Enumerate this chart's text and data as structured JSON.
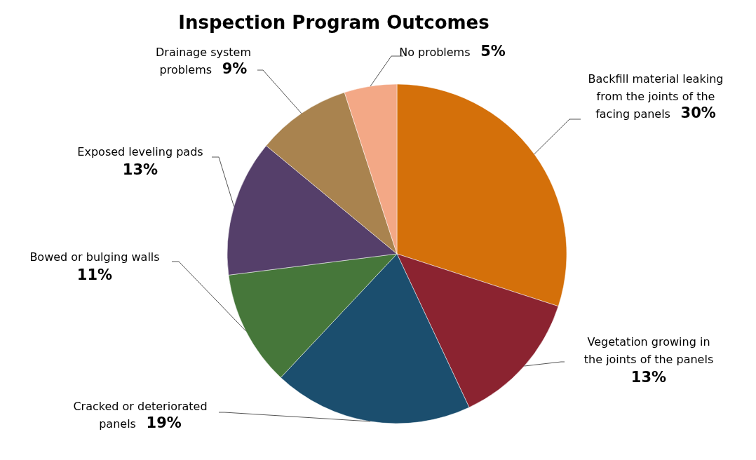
{
  "chart_data": {
    "type": "pie",
    "title": "Inspection Program Outcomes",
    "categories": [
      "Backfill material leaking from the joints of the facing panels",
      "Vegetation growing in the joints of the panels",
      "Cracked or deteriorated panels",
      "Bowed or bulging walls",
      "Exposed leveling pads",
      "Drainage system problems",
      "No problems"
    ],
    "values": [
      30,
      13,
      19,
      11,
      13,
      9,
      5
    ],
    "value_labels": [
      "30%",
      "13%",
      "19%",
      "11%",
      "13%",
      "9%",
      "5%"
    ],
    "colors": [
      "#d4700a",
      "#8b2330",
      "#1b4e6e",
      "#46773a",
      "#553f6a",
      "#a9834f",
      "#f3a886"
    ]
  }
}
